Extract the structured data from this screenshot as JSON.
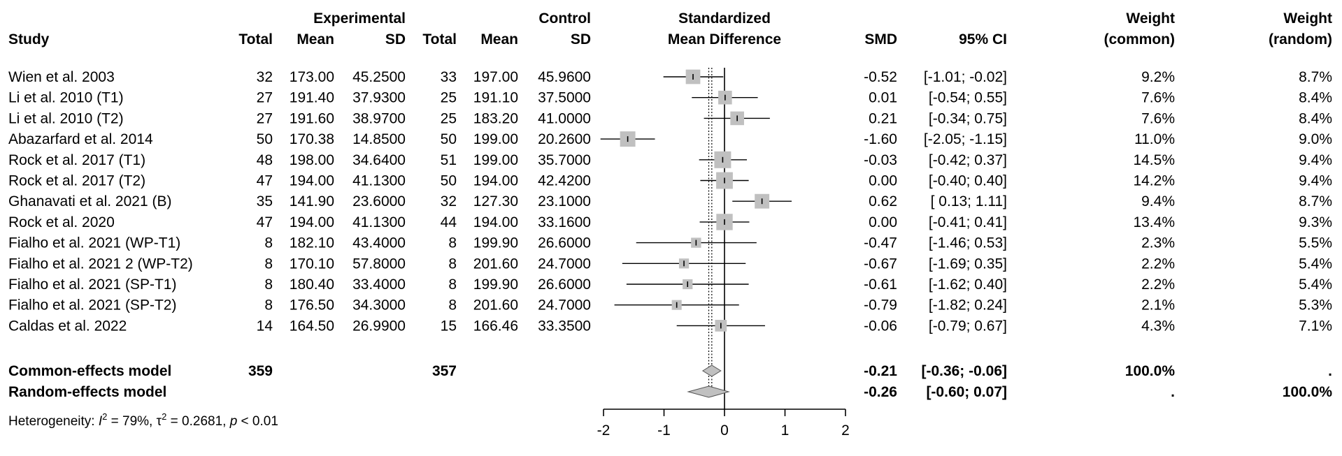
{
  "chart_data": {
    "type": "forest",
    "headers": {
      "study": "Study",
      "experimental": "Experimental",
      "control": "Control",
      "total": "Total",
      "mean": "Mean",
      "sd": "SD",
      "plot_line1": "Standardized",
      "plot_line2": "Mean Difference",
      "smd": "SMD",
      "ci": "95% CI",
      "weight": "Weight",
      "common": "(common)",
      "random": "(random)"
    },
    "studies": [
      {
        "study": "Wien et al. 2003",
        "e_total": "32",
        "e_mean": "173.00",
        "e_sd": "45.2500",
        "c_total": "33",
        "c_mean": "197.00",
        "c_sd": "45.9600",
        "smd": -0.52,
        "lo": -1.01,
        "hi": -0.02,
        "smd_text": "-0.52",
        "ci_text": "[-1.01; -0.02]",
        "w_common": 9.2,
        "w_common_text": "9.2%",
        "w_random_text": "8.7%"
      },
      {
        "study": "Li et al. 2010 (T1)",
        "e_total": "27",
        "e_mean": "191.40",
        "e_sd": "37.9300",
        "c_total": "25",
        "c_mean": "191.10",
        "c_sd": "37.5000",
        "smd": 0.01,
        "lo": -0.54,
        "hi": 0.55,
        "smd_text": "0.01",
        "ci_text": "[-0.54;  0.55]",
        "w_common": 7.6,
        "w_common_text": "7.6%",
        "w_random_text": "8.4%"
      },
      {
        "study": "Li et al. 2010 (T2)",
        "e_total": "27",
        "e_mean": "191.60",
        "e_sd": "38.9700",
        "c_total": "25",
        "c_mean": "183.20",
        "c_sd": "41.0000",
        "smd": 0.21,
        "lo": -0.34,
        "hi": 0.75,
        "smd_text": "0.21",
        "ci_text": "[-0.34;  0.75]",
        "w_common": 7.6,
        "w_common_text": "7.6%",
        "w_random_text": "8.4%"
      },
      {
        "study": "Abazarfard et al. 2014",
        "e_total": "50",
        "e_mean": "170.38",
        "e_sd": "14.8500",
        "c_total": "50",
        "c_mean": "199.00",
        "c_sd": "20.2600",
        "smd": -1.6,
        "lo": -2.05,
        "hi": -1.15,
        "smd_text": "-1.60",
        "ci_text": "[-2.05; -1.15]",
        "w_common": 11.0,
        "w_common_text": "11.0%",
        "w_random_text": "9.0%"
      },
      {
        "study": "Rock et al. 2017 (T1)",
        "e_total": "48",
        "e_mean": "198.00",
        "e_sd": "34.6400",
        "c_total": "51",
        "c_mean": "199.00",
        "c_sd": "35.7000",
        "smd": -0.03,
        "lo": -0.42,
        "hi": 0.37,
        "smd_text": "-0.03",
        "ci_text": "[-0.42;  0.37]",
        "w_common": 14.5,
        "w_common_text": "14.5%",
        "w_random_text": "9.4%"
      },
      {
        "study": "Rock et al. 2017 (T2)",
        "e_total": "47",
        "e_mean": "194.00",
        "e_sd": "41.1300",
        "c_total": "50",
        "c_mean": "194.00",
        "c_sd": "42.4200",
        "smd": 0.0,
        "lo": -0.4,
        "hi": 0.4,
        "smd_text": "0.00",
        "ci_text": "[-0.40;  0.40]",
        "w_common": 14.2,
        "w_common_text": "14.2%",
        "w_random_text": "9.4%"
      },
      {
        "study": "Ghanavati et al. 2021 (B)",
        "e_total": "35",
        "e_mean": "141.90",
        "e_sd": "23.6000",
        "c_total": "32",
        "c_mean": "127.30",
        "c_sd": "23.1000",
        "smd": 0.62,
        "lo": 0.13,
        "hi": 1.11,
        "smd_text": "0.62",
        "ci_text": "[ 0.13;  1.11]",
        "w_common": 9.4,
        "w_common_text": "9.4%",
        "w_random_text": "8.7%"
      },
      {
        "study": "Rock et al. 2020",
        "e_total": "47",
        "e_mean": "194.00",
        "e_sd": "41.1300",
        "c_total": "44",
        "c_mean": "194.00",
        "c_sd": "33.1600",
        "smd": 0.0,
        "lo": -0.41,
        "hi": 0.41,
        "smd_text": "0.00",
        "ci_text": "[-0.41;  0.41]",
        "w_common": 13.4,
        "w_common_text": "13.4%",
        "w_random_text": "9.3%"
      },
      {
        "study": "Fialho et al. 2021 (WP-T1)",
        "e_total": "8",
        "e_mean": "182.10",
        "e_sd": "43.4000",
        "c_total": "8",
        "c_mean": "199.90",
        "c_sd": "26.6000",
        "smd": -0.47,
        "lo": -1.46,
        "hi": 0.53,
        "smd_text": "-0.47",
        "ci_text": "[-1.46;  0.53]",
        "w_common": 2.3,
        "w_common_text": "2.3%",
        "w_random_text": "5.5%"
      },
      {
        "study": "Fialho et al. 2021 2 (WP-T2)",
        "e_total": "8",
        "e_mean": "170.10",
        "e_sd": "57.8000",
        "c_total": "8",
        "c_mean": "201.60",
        "c_sd": "24.7000",
        "smd": -0.67,
        "lo": -1.69,
        "hi": 0.35,
        "smd_text": "-0.67",
        "ci_text": "[-1.69;  0.35]",
        "w_common": 2.2,
        "w_common_text": "2.2%",
        "w_random_text": "5.4%"
      },
      {
        "study": "Fialho et al. 2021 (SP-T1)",
        "e_total": "8",
        "e_mean": "180.40",
        "e_sd": "33.4000",
        "c_total": "8",
        "c_mean": "199.90",
        "c_sd": "26.6000",
        "smd": -0.61,
        "lo": -1.62,
        "hi": 0.4,
        "smd_text": "-0.61",
        "ci_text": "[-1.62;  0.40]",
        "w_common": 2.2,
        "w_common_text": "2.2%",
        "w_random_text": "5.4%"
      },
      {
        "study": "Fialho et al. 2021 (SP-T2)",
        "e_total": "8",
        "e_mean": "176.50",
        "e_sd": "34.3000",
        "c_total": "8",
        "c_mean": "201.60",
        "c_sd": "24.7000",
        "smd": -0.79,
        "lo": -1.82,
        "hi": 0.24,
        "smd_text": "-0.79",
        "ci_text": "[-1.82;  0.24]",
        "w_common": 2.1,
        "w_common_text": "2.1%",
        "w_random_text": "5.3%"
      },
      {
        "study": "Caldas et al. 2022",
        "e_total": "14",
        "e_mean": "164.50",
        "e_sd": "26.9900",
        "c_total": "15",
        "c_mean": "166.46",
        "c_sd": "33.3500",
        "smd": -0.06,
        "lo": -0.79,
        "hi": 0.67,
        "smd_text": "-0.06",
        "ci_text": "[-0.79;  0.67]",
        "w_common": 4.3,
        "w_common_text": "4.3%",
        "w_random_text": "7.1%"
      }
    ],
    "pooled": [
      {
        "label": "Common-effects model",
        "e_total": "359",
        "c_total": "357",
        "smd": -0.21,
        "lo": -0.36,
        "hi": -0.06,
        "smd_text": "-0.21",
        "ci_text": "[-0.36; -0.06]",
        "w_common_text": "100.0%",
        "w_random_text": "."
      },
      {
        "label": "Random-effects model",
        "e_total": "",
        "c_total": "",
        "smd": -0.26,
        "lo": -0.6,
        "hi": 0.07,
        "smd_text": "-0.26",
        "ci_text": "[-0.60;  0.07]",
        "w_common_text": ".",
        "w_random_text": "100.0%"
      }
    ],
    "heterogeneity": {
      "prefix": "Heterogeneity: ",
      "i2_symbol": "I",
      "i2_exp": "2",
      "i2_value": " = 79%, ",
      "tau2_symbol": "τ",
      "tau2_exp": "2",
      "tau2_value": " = 0.2681, ",
      "p_symbol": "p",
      "p_value": " < 0.01"
    },
    "xaxis": {
      "ticks": [
        -2,
        -1,
        0,
        1,
        2
      ],
      "tick_labels": [
        "-2",
        "-1",
        "0",
        "1",
        "2"
      ],
      "range": [
        -2,
        2
      ]
    },
    "colors": {
      "square": "#c0c0c0",
      "diamond": "#c0c0c0",
      "line": "#000000",
      "ref": "#000000"
    }
  }
}
